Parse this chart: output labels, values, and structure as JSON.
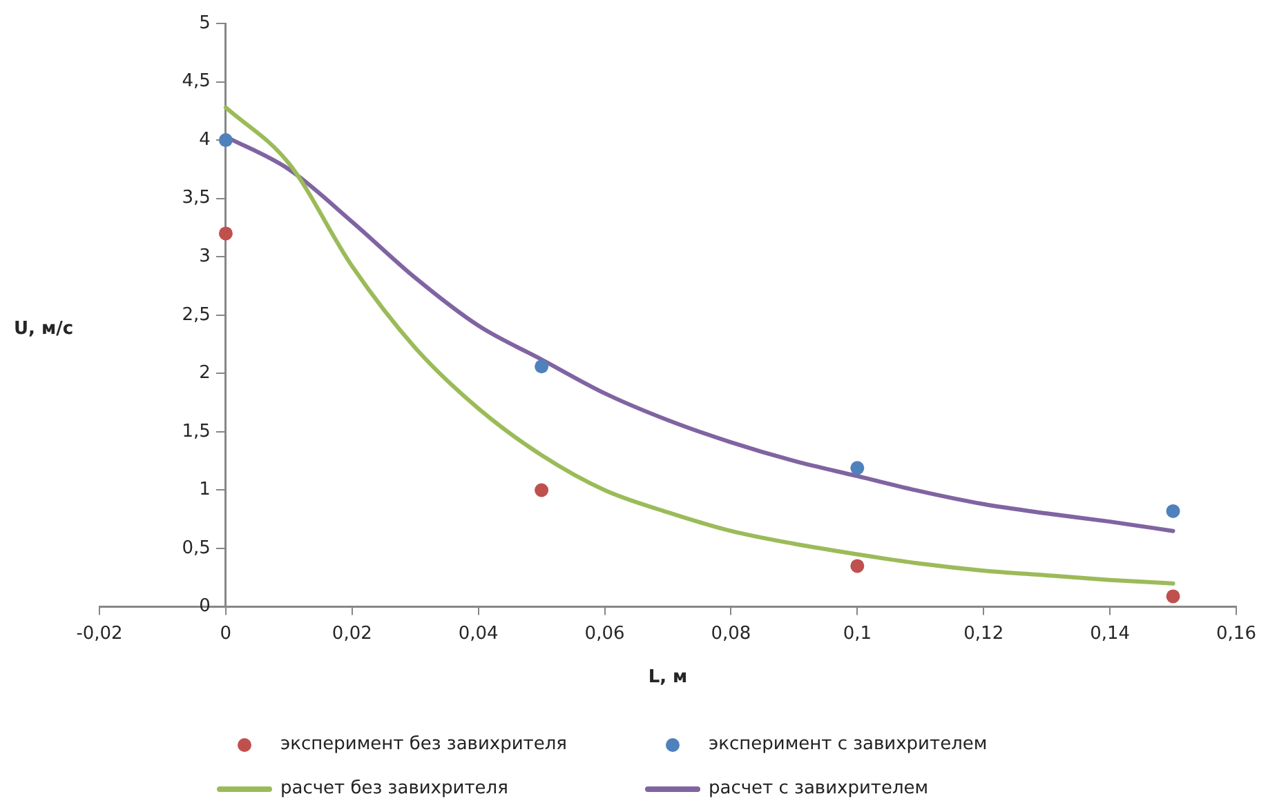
{
  "chart_data": {
    "type": "scatter",
    "xlabel": "L, м",
    "ylabel": "U, м/с",
    "xlim": [
      -0.02,
      0.16
    ],
    "xticks": [
      {
        "value": -0.02,
        "label": "-0,02"
      },
      0,
      {
        "value": 0.02,
        "label": "0,02"
      },
      {
        "value": 0.04,
        "label": "0,04"
      },
      {
        "value": 0.06,
        "label": "0,06"
      },
      {
        "value": 0.08,
        "label": "0,08"
      },
      {
        "value": 0.1,
        "label": "0,1"
      },
      {
        "value": 0.12,
        "label": "0,12"
      },
      {
        "value": 0.14,
        "label": "0,14"
      },
      {
        "value": 0.16,
        "label": "0,16"
      }
    ],
    "ylim": [
      0,
      5
    ],
    "yticks": [
      0,
      {
        "value": 0.5,
        "label": "0,5"
      },
      1,
      {
        "value": 1.5,
        "label": "1,5"
      },
      2,
      {
        "value": 2.5,
        "label": "2,5"
      },
      3,
      {
        "value": 3.5,
        "label": "3,5"
      },
      4,
      {
        "value": 4.5,
        "label": "4,5"
      },
      5
    ],
    "grid": false,
    "legend": "bottom",
    "series": [
      {
        "name": "эксперимент без завихрителя",
        "marker": "circle",
        "color": "#c0504d",
        "x": [
          0,
          0.05,
          0.1,
          0.15
        ],
        "values": [
          3.2,
          1.0,
          0.35,
          0.09
        ]
      },
      {
        "name": "эксперимент с завихрителем",
        "marker": "circle",
        "color": "#4f81bd",
        "x": [
          0,
          0.05,
          0.1,
          0.15
        ],
        "values": [
          4.0,
          2.06,
          1.19,
          0.82
        ]
      },
      {
        "name": "расчет без завихрителя",
        "type": "line",
        "color": "#9bbb59",
        "x": [
          0,
          0.01,
          0.02,
          0.03,
          0.04,
          0.05,
          0.06,
          0.07,
          0.08,
          0.09,
          0.1,
          0.11,
          0.12,
          0.13,
          0.14,
          0.15
        ],
        "values": [
          4.28,
          3.8,
          2.92,
          2.22,
          1.7,
          1.3,
          1.0,
          0.81,
          0.65,
          0.54,
          0.45,
          0.37,
          0.31,
          0.27,
          0.23,
          0.2
        ]
      },
      {
        "name": "расчет с завихрителем",
        "type": "line",
        "color": "#8064a2",
        "x": [
          0,
          0.01,
          0.02,
          0.03,
          0.04,
          0.05,
          0.06,
          0.07,
          0.08,
          0.09,
          0.1,
          0.11,
          0.12,
          0.13,
          0.14,
          0.15
        ],
        "values": [
          4.03,
          3.75,
          3.3,
          2.82,
          2.41,
          2.12,
          1.83,
          1.6,
          1.41,
          1.25,
          1.12,
          0.99,
          0.88,
          0.8,
          0.73,
          0.65
        ]
      }
    ]
  }
}
